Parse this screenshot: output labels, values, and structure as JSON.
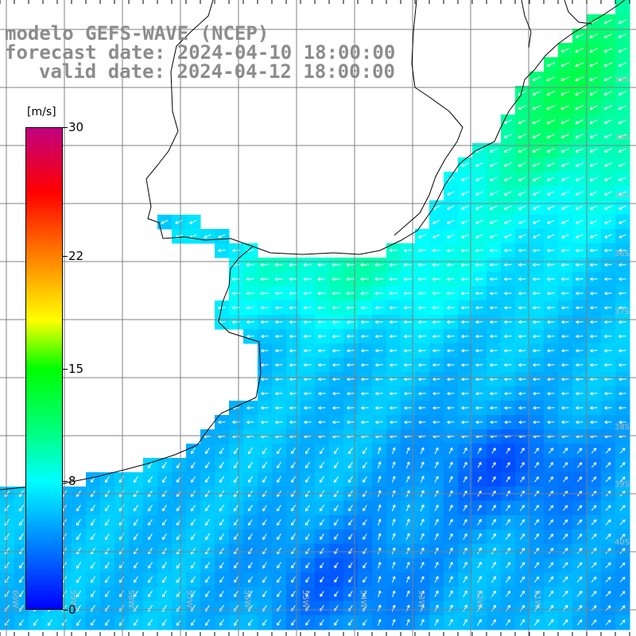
{
  "title": {
    "line1": "modelo GEFS-WAVE (NCEP)",
    "line2": "forecast date: 2024-04-10 18:00:00",
    "line3": "valid date: 2024-04-12 18:00:00"
  },
  "colorbar": {
    "unit": "[m/s]",
    "ticks": [
      {
        "value": 30,
        "label": "30"
      },
      {
        "value": 22,
        "label": "22"
      },
      {
        "value": 15,
        "label": "15"
      },
      {
        "value": 8,
        "label": "8"
      },
      {
        "value": 0,
        "label": "0"
      }
    ],
    "stops": [
      {
        "value": 0,
        "color": "#0000ff"
      },
      {
        "value": 4,
        "color": "#0080ff"
      },
      {
        "value": 8,
        "color": "#00ffff"
      },
      {
        "value": 11,
        "color": "#00ff80"
      },
      {
        "value": 15,
        "color": "#00ff00"
      },
      {
        "value": 18,
        "color": "#ffff00"
      },
      {
        "value": 22,
        "color": "#ff8000"
      },
      {
        "value": 26,
        "color": "#ff0000"
      },
      {
        "value": 30,
        "color": "#c00080"
      }
    ]
  },
  "map_labels": {
    "latitudes": [
      "33S",
      "34S",
      "35S",
      "36S",
      "37S",
      "38S",
      "39S",
      "40S"
    ],
    "longitudes": [
      "60W",
      "59W",
      "58W",
      "57W",
      "56W",
      "55W",
      "54W",
      "53W",
      "52W",
      "51W"
    ]
  },
  "chart_data": {
    "type": "heatmap",
    "variable": "wind speed and direction",
    "unit": "m/s",
    "color_range": [
      0,
      30
    ],
    "regions": [
      {
        "area": "southern Brazil coast (north-east)",
        "speed_ms": 11,
        "direction": "toward south-west"
      },
      {
        "area": "Uruguay coast / Rio de la Plata mouth",
        "speed_ms": 10,
        "direction": "toward west"
      },
      {
        "area": "offshore 36S-38S",
        "speed_ms": 6,
        "direction": "toward west"
      },
      {
        "area": "south-east offshore 39S-40S",
        "speed_ms": 2,
        "direction": "toward north-east"
      },
      {
        "area": "south-west near Argentina coast",
        "speed_ms": 5,
        "direction": "toward south-west"
      }
    ]
  }
}
